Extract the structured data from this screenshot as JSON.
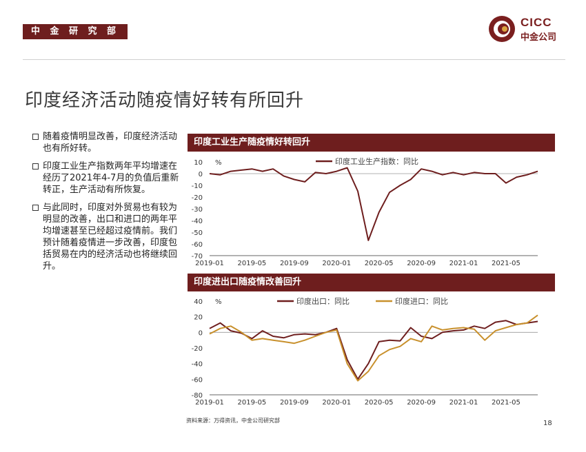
{
  "header": {
    "department": "中 金 研 究 部",
    "logo_en": "CICC",
    "logo_cn": "中金公司"
  },
  "page_title": "印度经济活动随疫情好转有所回升",
  "bullets": [
    "随着疫情明显改善，印度经济活动也有所好转。",
    "印度工业生产指数两年平均增速在经历了2021年4-7月的负值后重新转正，生产活动有所恢复。",
    "与此同时，印度对外贸易也有较为明显的改善，出口和进口的两年平均增速甚至已经超过疫情前。我们预计随着疫情进一步改善，印度包括贸易在内的经济活动也将继续回升。"
  ],
  "source": "资料来源：万得资讯，中金公司研究部",
  "page_number": "18",
  "colors": {
    "brand": "#6e1e1e",
    "export": "#6e1e1e",
    "import": "#c8902c"
  },
  "chart_data": [
    {
      "panel_title": "印度工业生产随疫情好转回升",
      "type": "line",
      "unit_label": "%",
      "ylim": [
        -70,
        10
      ],
      "yticks": [
        10,
        0,
        -10,
        -20,
        -30,
        -40,
        -50,
        -60,
        -70
      ],
      "xticks": [
        "2019-01",
        "2019-05",
        "2019-09",
        "2020-01",
        "2020-05",
        "2020-09",
        "2021-01",
        "2021-05"
      ],
      "x_start": "2019-01",
      "series": [
        {
          "name": "印度工业生产指数：同比",
          "color": "#6e1e1e",
          "values": [
            0,
            -1,
            2,
            3,
            4,
            2,
            4,
            -2,
            -5,
            -7,
            1,
            0,
            2,
            5,
            -15,
            -57,
            -33,
            -16,
            -10,
            -5,
            4,
            2,
            -1,
            1,
            -1,
            1,
            0,
            0,
            -8,
            -3,
            -1,
            2
          ]
        }
      ]
    },
    {
      "panel_title": "印度进出口随疫情改善回升",
      "type": "line",
      "unit_label": "%",
      "ylim": [
        -80,
        40
      ],
      "yticks": [
        40,
        20,
        0,
        -20,
        -40,
        -60,
        -80
      ],
      "xticks": [
        "2019-01",
        "2019-05",
        "2019-09",
        "2020-01",
        "2020-05",
        "2020-09",
        "2021-01",
        "2021-05"
      ],
      "x_start": "2019-01",
      "series": [
        {
          "name": "印度出口：同比",
          "color": "#6e1e1e",
          "values": [
            5,
            12,
            2,
            -1,
            -8,
            2,
            -5,
            -7,
            -3,
            -2,
            -3,
            0,
            5,
            -35,
            -60,
            -40,
            -12,
            -10,
            -11,
            6,
            -5,
            -8,
            0,
            2,
            3,
            8,
            5,
            13,
            15,
            10,
            12,
            14
          ]
        },
        {
          "name": "印度进口：同比",
          "color": "#c8902c",
          "values": [
            -2,
            5,
            8,
            0,
            -10,
            -8,
            -10,
            -12,
            -14,
            -10,
            -5,
            0,
            3,
            -40,
            -62,
            -50,
            -30,
            -22,
            -18,
            -8,
            -12,
            8,
            3,
            5,
            6,
            4,
            -10,
            2,
            6,
            10,
            12,
            22
          ]
        }
      ]
    }
  ]
}
